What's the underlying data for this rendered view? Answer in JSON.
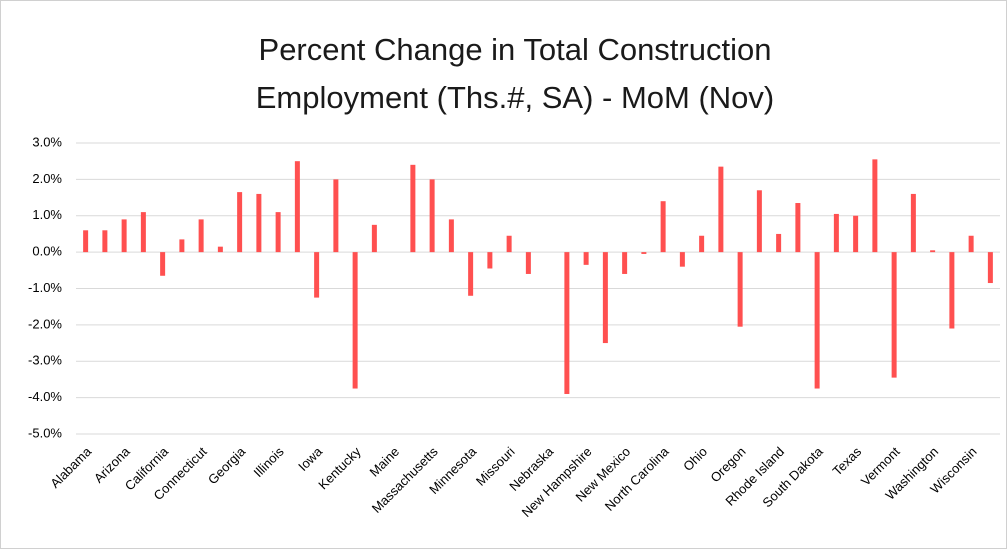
{
  "chart_data": {
    "type": "bar",
    "title": [
      "Percent Change in Total Construction",
      "Employment (Ths.#, SA) - MoM (Nov)"
    ],
    "categories": [
      "Alabama",
      null,
      "Arizona",
      null,
      "California",
      null,
      "Connecticut",
      null,
      "Georgia",
      null,
      "Illinois",
      null,
      "Iowa",
      null,
      "Kentucky",
      null,
      "Maine",
      null,
      "Massachusetts",
      null,
      "Minnesota",
      null,
      "Missouri",
      null,
      "Nebraska",
      null,
      "New Hampshire",
      null,
      "New Mexico",
      null,
      "North Carolina",
      null,
      "Ohio",
      null,
      "Oregon",
      null,
      "Rhode Island",
      null,
      "South Dakota",
      null,
      "Texas",
      null,
      "Vermont",
      null,
      "Washington",
      null,
      "Wisconsin",
      null
    ],
    "values": [
      0.6,
      0.6,
      0.9,
      1.1,
      -0.65,
      0.35,
      0.9,
      0.15,
      1.65,
      1.6,
      1.1,
      2.5,
      -1.25,
      2.0,
      -3.75,
      0.75,
      0,
      2.4,
      2.0,
      0.9,
      -1.2,
      -0.45,
      0.45,
      -0.6,
      0,
      -3.9,
      -0.35,
      -2.5,
      -0.6,
      -0.05,
      1.4,
      -0.4,
      0.45,
      2.35,
      -2.05,
      1.7,
      0.5,
      1.35,
      -3.75,
      1.05,
      1.0,
      2.55,
      -3.45,
      1.6,
      0.05,
      -2.1,
      0.45,
      -0.85
    ],
    "color": "#ff5050",
    "ylim": [
      -5,
      3
    ],
    "yticks": [
      {
        "value": -5,
        "label": "-5.0%"
      },
      {
        "value": -4,
        "label": "-4.0%"
      },
      {
        "value": -3,
        "label": "-3.0%"
      },
      {
        "value": -2,
        "label": "-2.0%"
      },
      {
        "value": -1,
        "label": "-1.0%"
      },
      {
        "value": 0,
        "label": "0.0%"
      },
      {
        "value": 1,
        "label": "1.0%"
      },
      {
        "value": 2,
        "label": "2.0%"
      },
      {
        "value": 3,
        "label": "3.0%"
      }
    ],
    "grid": true
  }
}
